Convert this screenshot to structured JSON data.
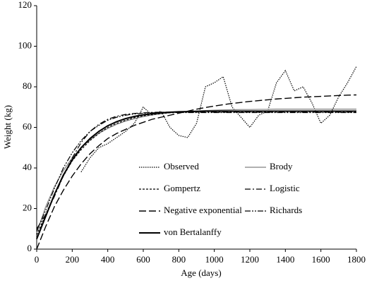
{
  "chart_data": {
    "type": "line",
    "x_label": "Age (days)",
    "y_label": "Weight (kg)",
    "x": [
      0,
      50,
      100,
      150,
      200,
      250,
      300,
      350,
      400,
      450,
      500,
      550,
      600,
      650,
      700,
      750,
      800,
      850,
      900,
      950,
      1000,
      1050,
      1100,
      1150,
      1200,
      1250,
      1300,
      1350,
      1400,
      1450,
      1500,
      1550,
      1600,
      1650,
      1700,
      1750,
      1800
    ],
    "series": [
      {
        "name": "Observed",
        "color": "#000000",
        "dash": "1.5,1.5",
        "width": 1.2,
        "values": [
          null,
          null,
          null,
          null,
          null,
          38,
          45,
          50,
          52,
          55,
          58,
          62,
          70,
          66,
          68,
          60,
          56,
          55,
          62,
          80,
          82,
          85,
          70,
          65,
          60,
          66,
          68,
          82,
          88,
          78,
          80,
          72,
          62,
          66,
          75,
          82,
          90
        ]
      },
      {
        "name": "Brody",
        "color": "#808080",
        "dash": "",
        "width": 1.2,
        "values": [
          8,
          20.7,
          30.8,
          38.7,
          45,
          50,
          53.9,
          57.1,
          59.5,
          61.5,
          63.1,
          64.3,
          65.3,
          66.1,
          66.7,
          67.2,
          67.5,
          67.8,
          68.1,
          68.3,
          68.5,
          68.6,
          68.7,
          68.8,
          68.8,
          68.9,
          68.9,
          69,
          69,
          69,
          69,
          69,
          69,
          69,
          69,
          69,
          69
        ]
      },
      {
        "name": "Gompertz",
        "color": "#000000",
        "dash": "3,2",
        "width": 1.2,
        "values": [
          7,
          17,
          27,
          36,
          43.5,
          49,
          53.5,
          57,
          60,
          62,
          63.5,
          64.8,
          65.7,
          66.3,
          66.8,
          67.2,
          67.4,
          67.6,
          67.7,
          67.8,
          67.8,
          67.8,
          67.8,
          68,
          68,
          68,
          68,
          68,
          68,
          68,
          68,
          68,
          68,
          68,
          68,
          68,
          68
        ]
      },
      {
        "name": "Logistic",
        "color": "#000000",
        "dash": "8,3,2,3",
        "width": 1.2,
        "values": [
          10,
          17,
          26,
          36,
          45,
          52.5,
          58,
          61.5,
          64,
          65.5,
          66.4,
          66.9,
          67.2,
          67.4,
          67.5,
          67.5,
          67.5,
          67.5,
          67.5,
          67.5,
          67.5,
          67.5,
          67.5,
          67.5,
          67.5,
          67.5,
          67.5,
          67.5,
          67.5,
          67.5,
          67.5,
          67.5,
          67.5,
          67.5,
          67.5,
          67.5,
          67.5
        ]
      },
      {
        "name": "Negative exponential",
        "color": "#000000",
        "dash": "10,4",
        "width": 1.4,
        "values": [
          0,
          11,
          21,
          29,
          36,
          42,
          47,
          51,
          54.5,
          57,
          59,
          61,
          62.5,
          64,
          65,
          66,
          67,
          68,
          69,
          69.8,
          70.5,
          71.2,
          71.8,
          72.3,
          72.8,
          73.2,
          73.6,
          74,
          74.3,
          74.6,
          74.9,
          75.1,
          75.3,
          75.5,
          75.7,
          75.9,
          76
        ]
      },
      {
        "name": "Richards",
        "color": "#000000",
        "dash": "8,2,2,2,2,2",
        "width": 1.2,
        "values": [
          9,
          19,
          30,
          40,
          47.5,
          53.5,
          58,
          61,
          63.5,
          65,
          66,
          66.6,
          67,
          67.2,
          67.3,
          67.3,
          67.3,
          67.3,
          67.3,
          67.3,
          67.3,
          67.3,
          67.3,
          67.3,
          67.3,
          67.3,
          67.3,
          67.3,
          67.3,
          67.3,
          67.3,
          67.3,
          67.3,
          67.3,
          67.3,
          67.3,
          67.3
        ]
      },
      {
        "name": "von Bertalanffy",
        "color": "#000000",
        "dash": "",
        "width": 2,
        "values": [
          5,
          16,
          27,
          36.5,
          44,
          50,
          54.5,
          58,
          60.8,
          62.8,
          64.3,
          65.4,
          66.2,
          66.8,
          67.2,
          67.5,
          67.7,
          67.8,
          67.9,
          68,
          68,
          68,
          68,
          68,
          68,
          68,
          68,
          68,
          68,
          68,
          68,
          68,
          68,
          68,
          68,
          68,
          68
        ]
      }
    ],
    "xlim": [
      0,
      1800
    ],
    "xticks": [
      0,
      200,
      400,
      600,
      800,
      1000,
      1200,
      1400,
      1600,
      1800
    ],
    "ylim": [
      0,
      120
    ],
    "yticks": [
      0,
      20,
      40,
      60,
      80,
      100,
      120
    ],
    "grid": false
  }
}
